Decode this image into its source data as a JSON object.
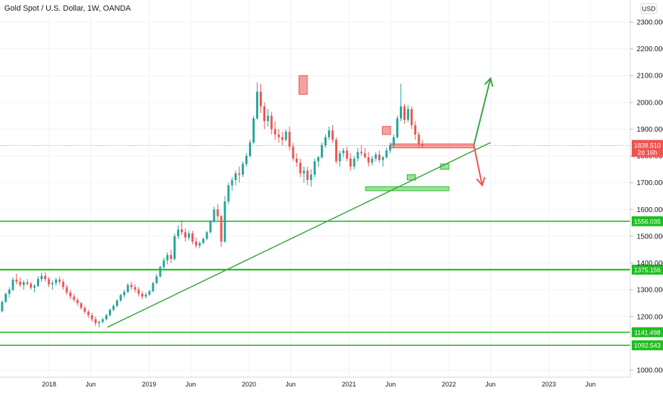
{
  "header": {
    "title": "Gold Spot / U.S. Dollar, 1W, OANDA",
    "currency_button": "USD"
  },
  "colors": {
    "up": "#26a69a",
    "down": "#ef5350",
    "level_line": "#1fbf1f",
    "trend_line": "#3aa33a",
    "resistance_fill": "#f08080",
    "support_fill": "#7cd67c",
    "price_label_bg": "#ef5350"
  },
  "chart_data": {
    "type": "candlestick",
    "title": "Gold Spot / U.S. Dollar, 1W, OANDA",
    "ylim": [
      960,
      2360
    ],
    "y_ticks": [
      "2300.000",
      "2200.000",
      "2100.000",
      "2000.000",
      "1900.000",
      "1800.000",
      "1700.000",
      "1600.000",
      "1500.000",
      "1400.000",
      "1300.000",
      "1200.000",
      "1000.000"
    ],
    "x_ticks": [
      "2018",
      "Jun",
      "2019",
      "Jun",
      "2020",
      "Jun",
      "2021",
      "Jun",
      "2022",
      "Jun",
      "2023",
      "Jun"
    ],
    "current_price": {
      "value": "1838.510",
      "countdown": "2d 16h"
    },
    "horizontal_levels": [
      {
        "label": "1556.035",
        "value": 1556.035
      },
      {
        "label": "1375.156",
        "value": 1375.156
      },
      {
        "label": "1141.498",
        "value": 1141.498
      },
      {
        "label": "1092.543",
        "value": 1092.543
      }
    ],
    "trendline": {
      "start": {
        "date": "2018-08",
        "price": 1160
      },
      "end": {
        "date": "2022-06",
        "price": 1850
      }
    },
    "forecast_arrows": [
      {
        "direction": "up",
        "start": {
          "date": "2022-04",
          "price": 1840
        },
        "end": {
          "date": "2022-06",
          "price": 2090
        }
      },
      {
        "direction": "down",
        "start": {
          "date": "2022-04",
          "price": 1840
        },
        "end": {
          "date": "2022-05",
          "price": 1690
        }
      }
    ],
    "zones": [
      {
        "kind": "resistance",
        "from": "2020-07",
        "to": "2020-08",
        "low": 2030,
        "high": 2100
      },
      {
        "kind": "resistance",
        "from": "2021-05",
        "to": "2021-06",
        "low": 1880,
        "high": 1910
      },
      {
        "kind": "resistance",
        "from": "2021-06",
        "to": "2022-04",
        "low": 1830,
        "high": 1845
      },
      {
        "kind": "support",
        "from": "2021-03",
        "to": "2022-01",
        "low": 1670,
        "high": 1685
      },
      {
        "kind": "support",
        "from": "2021-08",
        "to": "2021-09",
        "low": 1710,
        "high": 1730
      },
      {
        "kind": "support",
        "from": "2021-12",
        "to": "2022-01",
        "low": 1750,
        "high": 1770
      }
    ],
    "candles": [
      [
        1220,
        1260,
        1215,
        1255
      ],
      [
        1255,
        1290,
        1250,
        1285
      ],
      [
        1285,
        1310,
        1270,
        1300
      ],
      [
        1300,
        1345,
        1295,
        1338
      ],
      [
        1338,
        1360,
        1320,
        1330
      ],
      [
        1330,
        1345,
        1310,
        1318
      ],
      [
        1318,
        1335,
        1300,
        1328
      ],
      [
        1328,
        1340,
        1315,
        1322
      ],
      [
        1322,
        1330,
        1300,
        1308
      ],
      [
        1308,
        1320,
        1290,
        1315
      ],
      [
        1315,
        1350,
        1310,
        1340
      ],
      [
        1340,
        1365,
        1330,
        1352
      ],
      [
        1352,
        1365,
        1330,
        1340
      ],
      [
        1340,
        1348,
        1310,
        1320
      ],
      [
        1320,
        1335,
        1300,
        1325
      ],
      [
        1325,
        1345,
        1315,
        1338
      ],
      [
        1338,
        1350,
        1320,
        1330
      ],
      [
        1330,
        1340,
        1300,
        1310
      ],
      [
        1310,
        1320,
        1280,
        1290
      ],
      [
        1290,
        1300,
        1265,
        1275
      ],
      [
        1275,
        1285,
        1255,
        1262
      ],
      [
        1262,
        1270,
        1240,
        1250
      ],
      [
        1250,
        1255,
        1225,
        1232
      ],
      [
        1232,
        1240,
        1210,
        1218
      ],
      [
        1218,
        1225,
        1195,
        1205
      ],
      [
        1205,
        1215,
        1180,
        1190
      ],
      [
        1190,
        1200,
        1165,
        1175
      ],
      [
        1175,
        1185,
        1160,
        1180
      ],
      [
        1180,
        1195,
        1175,
        1190
      ],
      [
        1190,
        1210,
        1185,
        1205
      ],
      [
        1205,
        1230,
        1200,
        1225
      ],
      [
        1225,
        1245,
        1220,
        1240
      ],
      [
        1240,
        1265,
        1235,
        1260
      ],
      [
        1260,
        1285,
        1255,
        1280
      ],
      [
        1280,
        1300,
        1270,
        1292
      ],
      [
        1292,
        1325,
        1288,
        1318
      ],
      [
        1318,
        1330,
        1300,
        1310
      ],
      [
        1310,
        1320,
        1290,
        1300
      ],
      [
        1300,
        1310,
        1275,
        1285
      ],
      [
        1285,
        1295,
        1265,
        1275
      ],
      [
        1275,
        1290,
        1268,
        1282
      ],
      [
        1282,
        1300,
        1278,
        1295
      ],
      [
        1295,
        1330,
        1290,
        1325
      ],
      [
        1325,
        1360,
        1320,
        1350
      ],
      [
        1350,
        1390,
        1345,
        1385
      ],
      [
        1385,
        1420,
        1375,
        1410
      ],
      [
        1410,
        1440,
        1395,
        1430
      ],
      [
        1430,
        1450,
        1400,
        1415
      ],
      [
        1415,
        1510,
        1410,
        1500
      ],
      [
        1500,
        1540,
        1490,
        1525
      ],
      [
        1525,
        1560,
        1505,
        1515
      ],
      [
        1515,
        1530,
        1480,
        1495
      ],
      [
        1495,
        1520,
        1485,
        1510
      ],
      [
        1510,
        1520,
        1470,
        1480
      ],
      [
        1480,
        1495,
        1455,
        1465
      ],
      [
        1465,
        1480,
        1455,
        1475
      ],
      [
        1475,
        1495,
        1470,
        1490
      ],
      [
        1490,
        1520,
        1485,
        1515
      ],
      [
        1515,
        1560,
        1510,
        1555
      ],
      [
        1555,
        1610,
        1550,
        1600
      ],
      [
        1600,
        1620,
        1560,
        1575
      ],
      [
        1575,
        1580,
        1460,
        1480
      ],
      [
        1480,
        1650,
        1475,
        1630
      ],
      [
        1630,
        1700,
        1620,
        1690
      ],
      [
        1690,
        1720,
        1670,
        1710
      ],
      [
        1710,
        1745,
        1690,
        1735
      ],
      [
        1735,
        1760,
        1700,
        1730
      ],
      [
        1730,
        1780,
        1720,
        1770
      ],
      [
        1770,
        1810,
        1760,
        1800
      ],
      [
        1800,
        1860,
        1795,
        1850
      ],
      [
        1850,
        1950,
        1845,
        1940
      ],
      [
        1940,
        2075,
        1935,
        2040
      ],
      [
        2040,
        2070,
        1960,
        1985
      ],
      [
        1985,
        2000,
        1900,
        1930
      ],
      [
        1930,
        1975,
        1910,
        1950
      ],
      [
        1950,
        1965,
        1880,
        1900
      ],
      [
        1900,
        1930,
        1860,
        1880
      ],
      [
        1880,
        1900,
        1850,
        1870
      ],
      [
        1870,
        1890,
        1840,
        1860
      ],
      [
        1860,
        1900,
        1855,
        1890
      ],
      [
        1890,
        1910,
        1820,
        1835
      ],
      [
        1835,
        1850,
        1780,
        1790
      ],
      [
        1790,
        1810,
        1760,
        1775
      ],
      [
        1775,
        1790,
        1720,
        1735
      ],
      [
        1735,
        1760,
        1700,
        1745
      ],
      [
        1745,
        1760,
        1690,
        1710
      ],
      [
        1710,
        1750,
        1685,
        1730
      ],
      [
        1730,
        1790,
        1720,
        1780
      ],
      [
        1780,
        1800,
        1760,
        1795
      ],
      [
        1795,
        1850,
        1790,
        1840
      ],
      [
        1840,
        1880,
        1830,
        1870
      ],
      [
        1870,
        1910,
        1860,
        1895
      ],
      [
        1895,
        1915,
        1850,
        1860
      ],
      [
        1860,
        1870,
        1770,
        1780
      ],
      [
        1780,
        1820,
        1760,
        1810
      ],
      [
        1810,
        1830,
        1795,
        1820
      ],
      [
        1820,
        1835,
        1780,
        1790
      ],
      [
        1790,
        1810,
        1745,
        1760
      ],
      [
        1760,
        1800,
        1750,
        1790
      ],
      [
        1790,
        1830,
        1780,
        1815
      ],
      [
        1815,
        1840,
        1800,
        1810
      ],
      [
        1810,
        1830,
        1790,
        1795
      ],
      [
        1795,
        1815,
        1760,
        1775
      ],
      [
        1775,
        1800,
        1765,
        1790
      ],
      [
        1790,
        1815,
        1780,
        1805
      ],
      [
        1805,
        1820,
        1775,
        1785
      ],
      [
        1785,
        1800,
        1760,
        1795
      ],
      [
        1795,
        1830,
        1790,
        1820
      ],
      [
        1820,
        1850,
        1810,
        1840
      ],
      [
        1840,
        1880,
        1830,
        1870
      ],
      [
        1870,
        1950,
        1865,
        1940
      ],
      [
        1940,
        2070,
        1930,
        1985
      ],
      [
        1985,
        1995,
        1920,
        1935
      ],
      [
        1935,
        1990,
        1925,
        1975
      ],
      [
        1975,
        1985,
        1900,
        1915
      ],
      [
        1915,
        1930,
        1860,
        1880
      ],
      [
        1880,
        1890,
        1830,
        1845
      ],
      [
        1845,
        1860,
        1830,
        1838.51
      ]
    ]
  }
}
